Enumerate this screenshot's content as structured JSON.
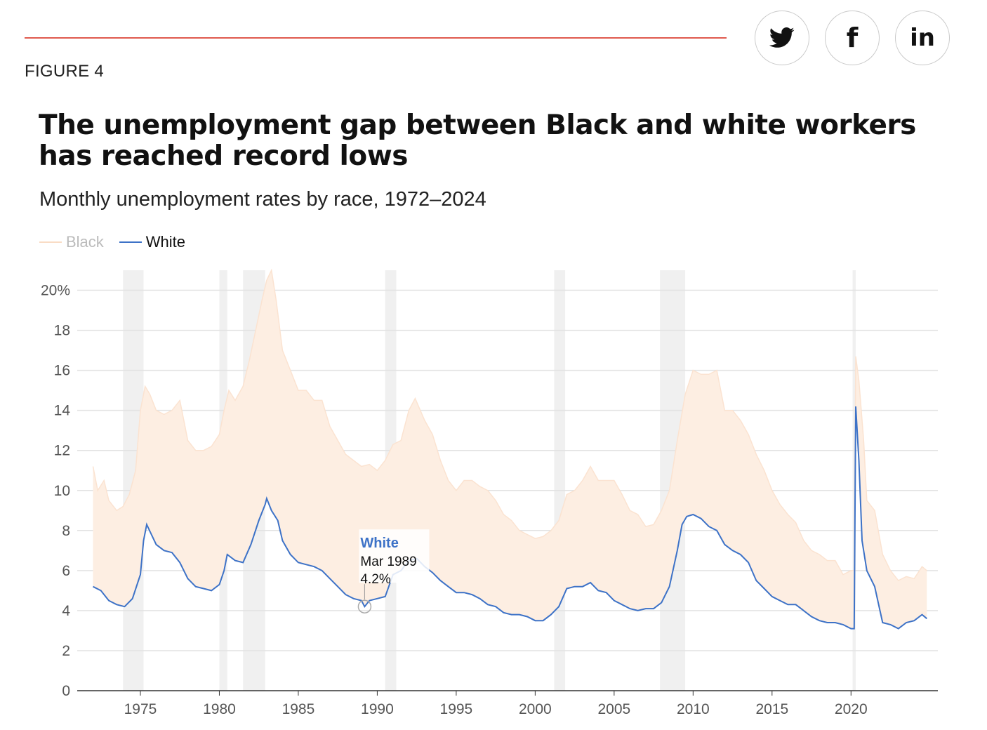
{
  "header": {
    "figure_label": "FIGURE 4",
    "share": [
      {
        "name": "twitter-icon",
        "glyph": ""
      },
      {
        "name": "facebook-icon",
        "glyph": "f"
      },
      {
        "name": "linkedin-icon",
        "glyph": "in"
      }
    ]
  },
  "colors": {
    "accent_rule": "#e05a4e",
    "black_series": "#fbe3d1",
    "black_band": "#fdeee2",
    "white_series": "#3d72c7",
    "recession": "#f0f0f0"
  },
  "chart_data": {
    "type": "line",
    "title": "The unemployment gap between Black and white workers has reached record lows",
    "subtitle": "Monthly unemployment rates by race, 1972–2024",
    "y_unit": "%",
    "ylim": [
      0,
      21
    ],
    "y_ticks": [
      0,
      2,
      4,
      6,
      8,
      10,
      12,
      14,
      16,
      18,
      20
    ],
    "y_tick_labels": [
      "0",
      "2",
      "4",
      "6",
      "8",
      "10",
      "12",
      "14",
      "16",
      "18",
      "20%"
    ],
    "xlim": [
      1971.0,
      2025.5
    ],
    "x_ticks": [
      1975,
      1980,
      1985,
      1990,
      1995,
      2000,
      2005,
      2010,
      2015,
      2020
    ],
    "grid": "horizontal",
    "legend_position": "top-left",
    "series": [
      {
        "name": "Black",
        "points": [
          [
            1972.0,
            11.2
          ],
          [
            1972.3,
            10.0
          ],
          [
            1972.7,
            10.5
          ],
          [
            1973.0,
            9.5
          ],
          [
            1973.5,
            9.0
          ],
          [
            1973.9,
            9.2
          ],
          [
            1974.3,
            9.8
          ],
          [
            1974.7,
            11.0
          ],
          [
            1975.0,
            14.0
          ],
          [
            1975.3,
            15.2
          ],
          [
            1975.6,
            14.8
          ],
          [
            1976.0,
            14.0
          ],
          [
            1976.5,
            13.8
          ],
          [
            1977.0,
            14.0
          ],
          [
            1977.5,
            14.5
          ],
          [
            1978.0,
            12.5
          ],
          [
            1978.5,
            12.0
          ],
          [
            1979.0,
            12.0
          ],
          [
            1979.5,
            12.2
          ],
          [
            1980.0,
            12.8
          ],
          [
            1980.3,
            14.0
          ],
          [
            1980.6,
            15.0
          ],
          [
            1981.0,
            14.5
          ],
          [
            1981.5,
            15.2
          ],
          [
            1981.9,
            16.5
          ],
          [
            1982.3,
            18.0
          ],
          [
            1982.7,
            19.5
          ],
          [
            1983.0,
            20.5
          ],
          [
            1983.3,
            21.0
          ],
          [
            1983.6,
            19.5
          ],
          [
            1984.0,
            17.0
          ],
          [
            1984.5,
            16.0
          ],
          [
            1985.0,
            15.0
          ],
          [
            1985.5,
            15.0
          ],
          [
            1986.0,
            14.5
          ],
          [
            1986.5,
            14.5
          ],
          [
            1987.0,
            13.2
          ],
          [
            1987.5,
            12.5
          ],
          [
            1988.0,
            11.8
          ],
          [
            1988.5,
            11.5
          ],
          [
            1989.0,
            11.2
          ],
          [
            1989.5,
            11.3
          ],
          [
            1990.0,
            11.0
          ],
          [
            1990.5,
            11.5
          ],
          [
            1991.0,
            12.3
          ],
          [
            1991.5,
            12.5
          ],
          [
            1992.0,
            14.0
          ],
          [
            1992.4,
            14.6
          ],
          [
            1993.0,
            13.5
          ],
          [
            1993.5,
            12.8
          ],
          [
            1994.0,
            11.5
          ],
          [
            1994.5,
            10.5
          ],
          [
            1995.0,
            10.0
          ],
          [
            1995.5,
            10.5
          ],
          [
            1996.0,
            10.5
          ],
          [
            1996.5,
            10.2
          ],
          [
            1997.0,
            10.0
          ],
          [
            1997.5,
            9.5
          ],
          [
            1998.0,
            8.8
          ],
          [
            1998.5,
            8.5
          ],
          [
            1999.0,
            8.0
          ],
          [
            1999.5,
            7.8
          ],
          [
            2000.0,
            7.6
          ],
          [
            2000.5,
            7.7
          ],
          [
            2001.0,
            8.0
          ],
          [
            2001.5,
            8.5
          ],
          [
            2002.0,
            9.8
          ],
          [
            2002.5,
            10.0
          ],
          [
            2003.0,
            10.5
          ],
          [
            2003.5,
            11.2
          ],
          [
            2004.0,
            10.5
          ],
          [
            2004.5,
            10.5
          ],
          [
            2005.0,
            10.5
          ],
          [
            2005.5,
            9.8
          ],
          [
            2006.0,
            9.0
          ],
          [
            2006.5,
            8.8
          ],
          [
            2007.0,
            8.2
          ],
          [
            2007.5,
            8.3
          ],
          [
            2008.0,
            9.0
          ],
          [
            2008.5,
            10.0
          ],
          [
            2009.0,
            12.5
          ],
          [
            2009.5,
            14.8
          ],
          [
            2010.0,
            16.0
          ],
          [
            2010.5,
            15.8
          ],
          [
            2011.0,
            15.8
          ],
          [
            2011.5,
            16.0
          ],
          [
            2012.0,
            14.0
          ],
          [
            2012.5,
            14.0
          ],
          [
            2013.0,
            13.5
          ],
          [
            2013.5,
            12.8
          ],
          [
            2014.0,
            11.8
          ],
          [
            2014.5,
            11.0
          ],
          [
            2015.0,
            10.0
          ],
          [
            2015.5,
            9.3
          ],
          [
            2016.0,
            8.8
          ],
          [
            2016.5,
            8.4
          ],
          [
            2017.0,
            7.5
          ],
          [
            2017.5,
            7.0
          ],
          [
            2018.0,
            6.8
          ],
          [
            2018.5,
            6.5
          ],
          [
            2019.0,
            6.5
          ],
          [
            2019.5,
            5.8
          ],
          [
            2020.0,
            6.0
          ],
          [
            2020.2,
            6.0
          ],
          [
            2020.3,
            16.7
          ],
          [
            2020.5,
            15.5
          ],
          [
            2020.8,
            12.5
          ],
          [
            2021.0,
            9.5
          ],
          [
            2021.5,
            9.0
          ],
          [
            2022.0,
            6.8
          ],
          [
            2022.5,
            6.0
          ],
          [
            2023.0,
            5.5
          ],
          [
            2023.5,
            5.7
          ],
          [
            2024.0,
            5.6
          ],
          [
            2024.5,
            6.2
          ],
          [
            2024.8,
            6.0
          ]
        ]
      },
      {
        "name": "White",
        "points": [
          [
            1972.0,
            5.2
          ],
          [
            1972.5,
            5.0
          ],
          [
            1973.0,
            4.5
          ],
          [
            1973.5,
            4.3
          ],
          [
            1974.0,
            4.2
          ],
          [
            1974.5,
            4.6
          ],
          [
            1975.0,
            5.8
          ],
          [
            1975.2,
            7.5
          ],
          [
            1975.4,
            8.3
          ],
          [
            1975.7,
            7.8
          ],
          [
            1976.0,
            7.3
          ],
          [
            1976.5,
            7.0
          ],
          [
            1977.0,
            6.9
          ],
          [
            1977.5,
            6.4
          ],
          [
            1978.0,
            5.6
          ],
          [
            1978.5,
            5.2
          ],
          [
            1979.0,
            5.1
          ],
          [
            1979.5,
            5.0
          ],
          [
            1980.0,
            5.3
          ],
          [
            1980.3,
            6.0
          ],
          [
            1980.5,
            6.8
          ],
          [
            1981.0,
            6.5
          ],
          [
            1981.5,
            6.4
          ],
          [
            1982.0,
            7.3
          ],
          [
            1982.5,
            8.5
          ],
          [
            1982.9,
            9.3
          ],
          [
            1983.0,
            9.6
          ],
          [
            1983.3,
            9.0
          ],
          [
            1983.7,
            8.5
          ],
          [
            1984.0,
            7.5
          ],
          [
            1984.5,
            6.8
          ],
          [
            1985.0,
            6.4
          ],
          [
            1985.5,
            6.3
          ],
          [
            1986.0,
            6.2
          ],
          [
            1986.5,
            6.0
          ],
          [
            1987.0,
            5.6
          ],
          [
            1987.5,
            5.2
          ],
          [
            1988.0,
            4.8
          ],
          [
            1988.5,
            4.6
          ],
          [
            1989.0,
            4.5
          ],
          [
            1989.2,
            4.2
          ],
          [
            1989.5,
            4.5
          ],
          [
            1990.0,
            4.6
          ],
          [
            1990.5,
            4.7
          ],
          [
            1991.0,
            5.8
          ],
          [
            1991.5,
            6.0
          ],
          [
            1992.0,
            6.5
          ],
          [
            1992.5,
            6.6
          ],
          [
            1993.0,
            6.2
          ],
          [
            1993.5,
            5.9
          ],
          [
            1994.0,
            5.5
          ],
          [
            1994.5,
            5.2
          ],
          [
            1995.0,
            4.9
          ],
          [
            1995.5,
            4.9
          ],
          [
            1996.0,
            4.8
          ],
          [
            1996.5,
            4.6
          ],
          [
            1997.0,
            4.3
          ],
          [
            1997.5,
            4.2
          ],
          [
            1998.0,
            3.9
          ],
          [
            1998.5,
            3.8
          ],
          [
            1999.0,
            3.8
          ],
          [
            1999.5,
            3.7
          ],
          [
            2000.0,
            3.5
          ],
          [
            2000.5,
            3.5
          ],
          [
            2001.0,
            3.8
          ],
          [
            2001.5,
            4.2
          ],
          [
            2002.0,
            5.1
          ],
          [
            2002.5,
            5.2
          ],
          [
            2003.0,
            5.2
          ],
          [
            2003.5,
            5.4
          ],
          [
            2004.0,
            5.0
          ],
          [
            2004.5,
            4.9
          ],
          [
            2005.0,
            4.5
          ],
          [
            2005.5,
            4.3
          ],
          [
            2006.0,
            4.1
          ],
          [
            2006.5,
            4.0
          ],
          [
            2007.0,
            4.1
          ],
          [
            2007.5,
            4.1
          ],
          [
            2008.0,
            4.4
          ],
          [
            2008.5,
            5.2
          ],
          [
            2009.0,
            7.0
          ],
          [
            2009.3,
            8.3
          ],
          [
            2009.6,
            8.7
          ],
          [
            2010.0,
            8.8
          ],
          [
            2010.5,
            8.6
          ],
          [
            2011.0,
            8.2
          ],
          [
            2011.5,
            8.0
          ],
          [
            2012.0,
            7.3
          ],
          [
            2012.5,
            7.0
          ],
          [
            2013.0,
            6.8
          ],
          [
            2013.5,
            6.4
          ],
          [
            2014.0,
            5.5
          ],
          [
            2014.5,
            5.1
          ],
          [
            2015.0,
            4.7
          ],
          [
            2015.5,
            4.5
          ],
          [
            2016.0,
            4.3
          ],
          [
            2016.5,
            4.3
          ],
          [
            2017.0,
            4.0
          ],
          [
            2017.5,
            3.7
          ],
          [
            2018.0,
            3.5
          ],
          [
            2018.5,
            3.4
          ],
          [
            2019.0,
            3.4
          ],
          [
            2019.5,
            3.3
          ],
          [
            2020.0,
            3.1
          ],
          [
            2020.2,
            3.1
          ],
          [
            2020.3,
            14.2
          ],
          [
            2020.5,
            11.5
          ],
          [
            2020.7,
            7.5
          ],
          [
            2021.0,
            6.0
          ],
          [
            2021.5,
            5.2
          ],
          [
            2022.0,
            3.4
          ],
          [
            2022.5,
            3.3
          ],
          [
            2023.0,
            3.1
          ],
          [
            2023.5,
            3.4
          ],
          [
            2024.0,
            3.5
          ],
          [
            2024.5,
            3.8
          ],
          [
            2024.8,
            3.6
          ]
        ]
      }
    ],
    "recessions": [
      [
        1973.9,
        1975.2
      ],
      [
        1980.0,
        1980.5
      ],
      [
        1981.5,
        1982.9
      ],
      [
        1990.5,
        1991.2
      ],
      [
        2001.2,
        2001.9
      ],
      [
        2007.9,
        2009.5
      ],
      [
        2020.1,
        2020.3
      ]
    ],
    "tooltip": {
      "series": "White",
      "date": "Mar 1989",
      "value_label": "4.2%",
      "x": 1989.2,
      "y": 4.2
    }
  }
}
